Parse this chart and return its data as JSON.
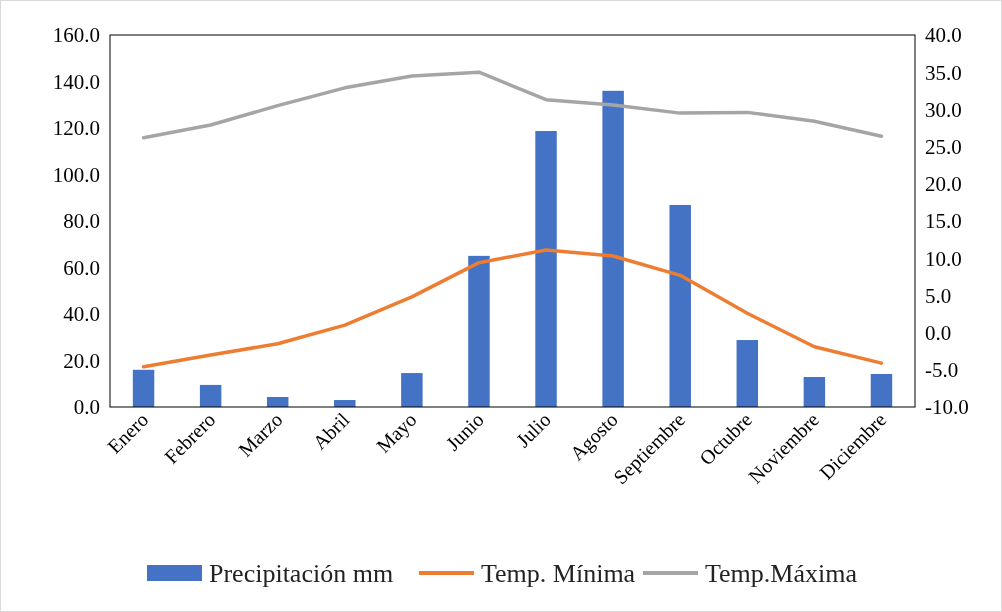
{
  "chart_data": {
    "type": "bar",
    "categories": [
      "Enero",
      "Febrero",
      "Marzo",
      "Abril",
      "Mayo",
      "Junio",
      "Julio",
      "Agosto",
      "Septiembre",
      "Octubre",
      "Noviembre",
      "Diciembre"
    ],
    "series": [
      {
        "name": "Precipitación mm",
        "color": "#4472c4",
        "values": [
          16,
          9.5,
          4.3,
          3,
          14.6,
          65,
          118.7,
          136,
          86.9,
          28.8,
          12.9,
          14.2
        ]
      },
      {
        "name": "Temp. Mínima",
        "type": "line",
        "axis": "y2",
        "color": "#ed7d31",
        "values": [
          -4.6,
          -3.0,
          -1.5,
          1.0,
          4.8,
          9.4,
          11.1,
          10.3,
          7.7,
          2.6,
          -1.9,
          -4.1
        ]
      },
      {
        "name": "Temp.Máxima",
        "type": "line",
        "axis": "y2",
        "color": "#a5a5a5",
        "values": [
          26.2,
          27.9,
          30.5,
          32.9,
          34.5,
          35.0,
          31.3,
          30.6,
          29.5,
          29.6,
          28.4,
          26.4
        ]
      }
    ],
    "ylim": [
      0,
      160
    ],
    "yticks": [
      {
        "value": 0,
        "label": "0.0"
      },
      {
        "value": 20,
        "label": "20.0"
      },
      {
        "value": 40,
        "label": "40.0"
      },
      {
        "value": 60,
        "label": "60.0"
      },
      {
        "value": 80,
        "label": "80.0"
      },
      {
        "value": 100,
        "label": "100.0"
      },
      {
        "value": 120,
        "label": "120.0"
      },
      {
        "value": 140,
        "label": "140.0"
      },
      {
        "value": 160,
        "label": "160.0"
      }
    ],
    "y2lim": [
      -10,
      40
    ],
    "y2ticks": [
      {
        "value": -10,
        "label": "-10.0"
      },
      {
        "value": -5,
        "label": "-5.0"
      },
      {
        "value": 0,
        "label": "0.0"
      },
      {
        "value": 5,
        "label": "5.0"
      },
      {
        "value": 10,
        "label": "10.0"
      },
      {
        "value": 15,
        "label": "15.0"
      },
      {
        "value": 20,
        "label": "20.0"
      },
      {
        "value": 25,
        "label": "25.0"
      },
      {
        "value": 30,
        "label": "30.0"
      },
      {
        "value": 35,
        "label": "35.0"
      },
      {
        "value": 40,
        "label": "40.0"
      }
    ],
    "legend": "bottom",
    "grid": false,
    "marker": "none",
    "line_style": "solid"
  }
}
